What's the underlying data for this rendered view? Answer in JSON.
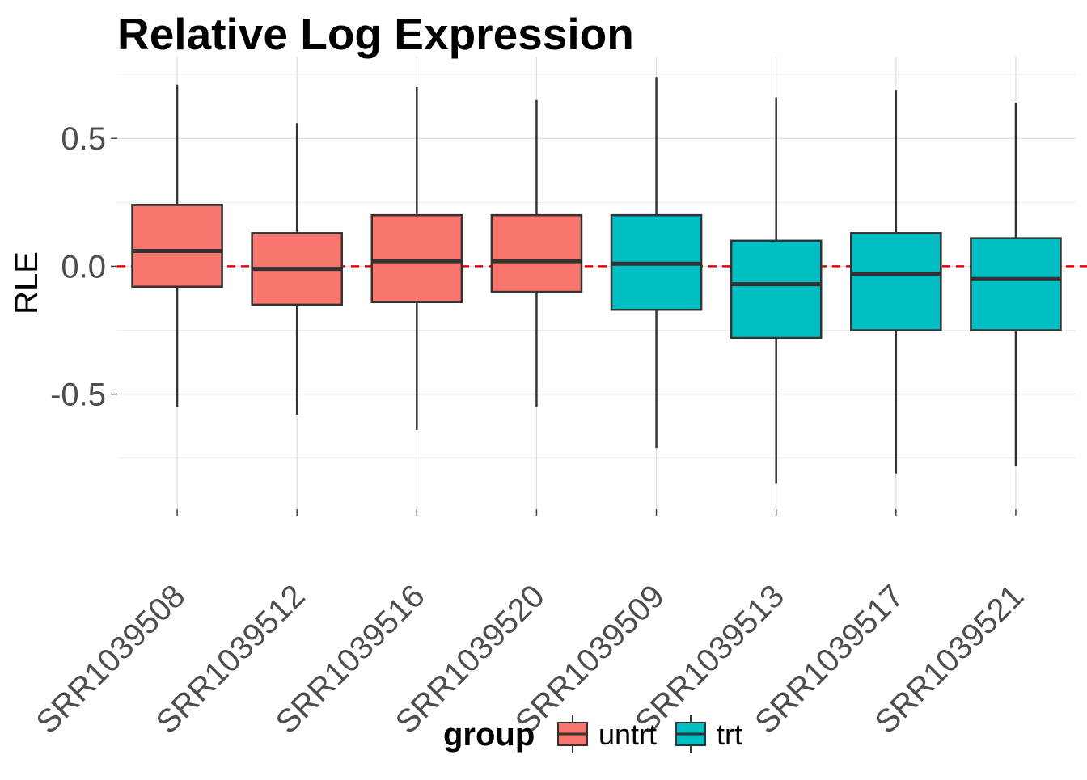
{
  "chart_data": {
    "type": "boxplot",
    "title": "Relative Log Expression",
    "xlabel": "",
    "ylabel": "RLE",
    "ylim": [
      -0.95,
      0.82
    ],
    "yticks": [
      -0.5,
      0.0,
      0.5
    ],
    "ytick_labels": [
      "-0.5",
      "0.0",
      "0.5"
    ],
    "reference_line": {
      "y": 0.0,
      "style": "dashed",
      "color": "#ee0000"
    },
    "grid": true,
    "legend": {
      "title": "group",
      "position": "bottom",
      "entries": [
        {
          "label": "untrt",
          "color": "#f8766d"
        },
        {
          "label": "trt",
          "color": "#00bfc4"
        }
      ]
    },
    "categories": [
      "SRR1039508",
      "SRR1039512",
      "SRR1039516",
      "SRR1039520",
      "SRR1039509",
      "SRR1039513",
      "SRR1039517",
      "SRR1039521"
    ],
    "boxes": [
      {
        "sample": "SRR1039508",
        "group": "untrt",
        "whisker_low": -0.55,
        "q1": -0.08,
        "median": 0.06,
        "q3": 0.24,
        "whisker_high": 0.71
      },
      {
        "sample": "SRR1039512",
        "group": "untrt",
        "whisker_low": -0.58,
        "q1": -0.15,
        "median": -0.01,
        "q3": 0.13,
        "whisker_high": 0.56
      },
      {
        "sample": "SRR1039516",
        "group": "untrt",
        "whisker_low": -0.64,
        "q1": -0.14,
        "median": 0.02,
        "q3": 0.2,
        "whisker_high": 0.7
      },
      {
        "sample": "SRR1039520",
        "group": "untrt",
        "whisker_low": -0.55,
        "q1": -0.1,
        "median": 0.02,
        "q3": 0.2,
        "whisker_high": 0.65
      },
      {
        "sample": "SRR1039509",
        "group": "trt",
        "whisker_low": -0.71,
        "q1": -0.17,
        "median": 0.01,
        "q3": 0.2,
        "whisker_high": 0.74
      },
      {
        "sample": "SRR1039513",
        "group": "trt",
        "whisker_low": -0.85,
        "q1": -0.28,
        "median": -0.07,
        "q3": 0.1,
        "whisker_high": 0.66
      },
      {
        "sample": "SRR1039517",
        "group": "trt",
        "whisker_low": -0.81,
        "q1": -0.25,
        "median": -0.03,
        "q3": 0.13,
        "whisker_high": 0.69
      },
      {
        "sample": "SRR1039521",
        "group": "trt",
        "whisker_low": -0.78,
        "q1": -0.25,
        "median": -0.05,
        "q3": 0.11,
        "whisker_high": 0.64
      }
    ]
  }
}
